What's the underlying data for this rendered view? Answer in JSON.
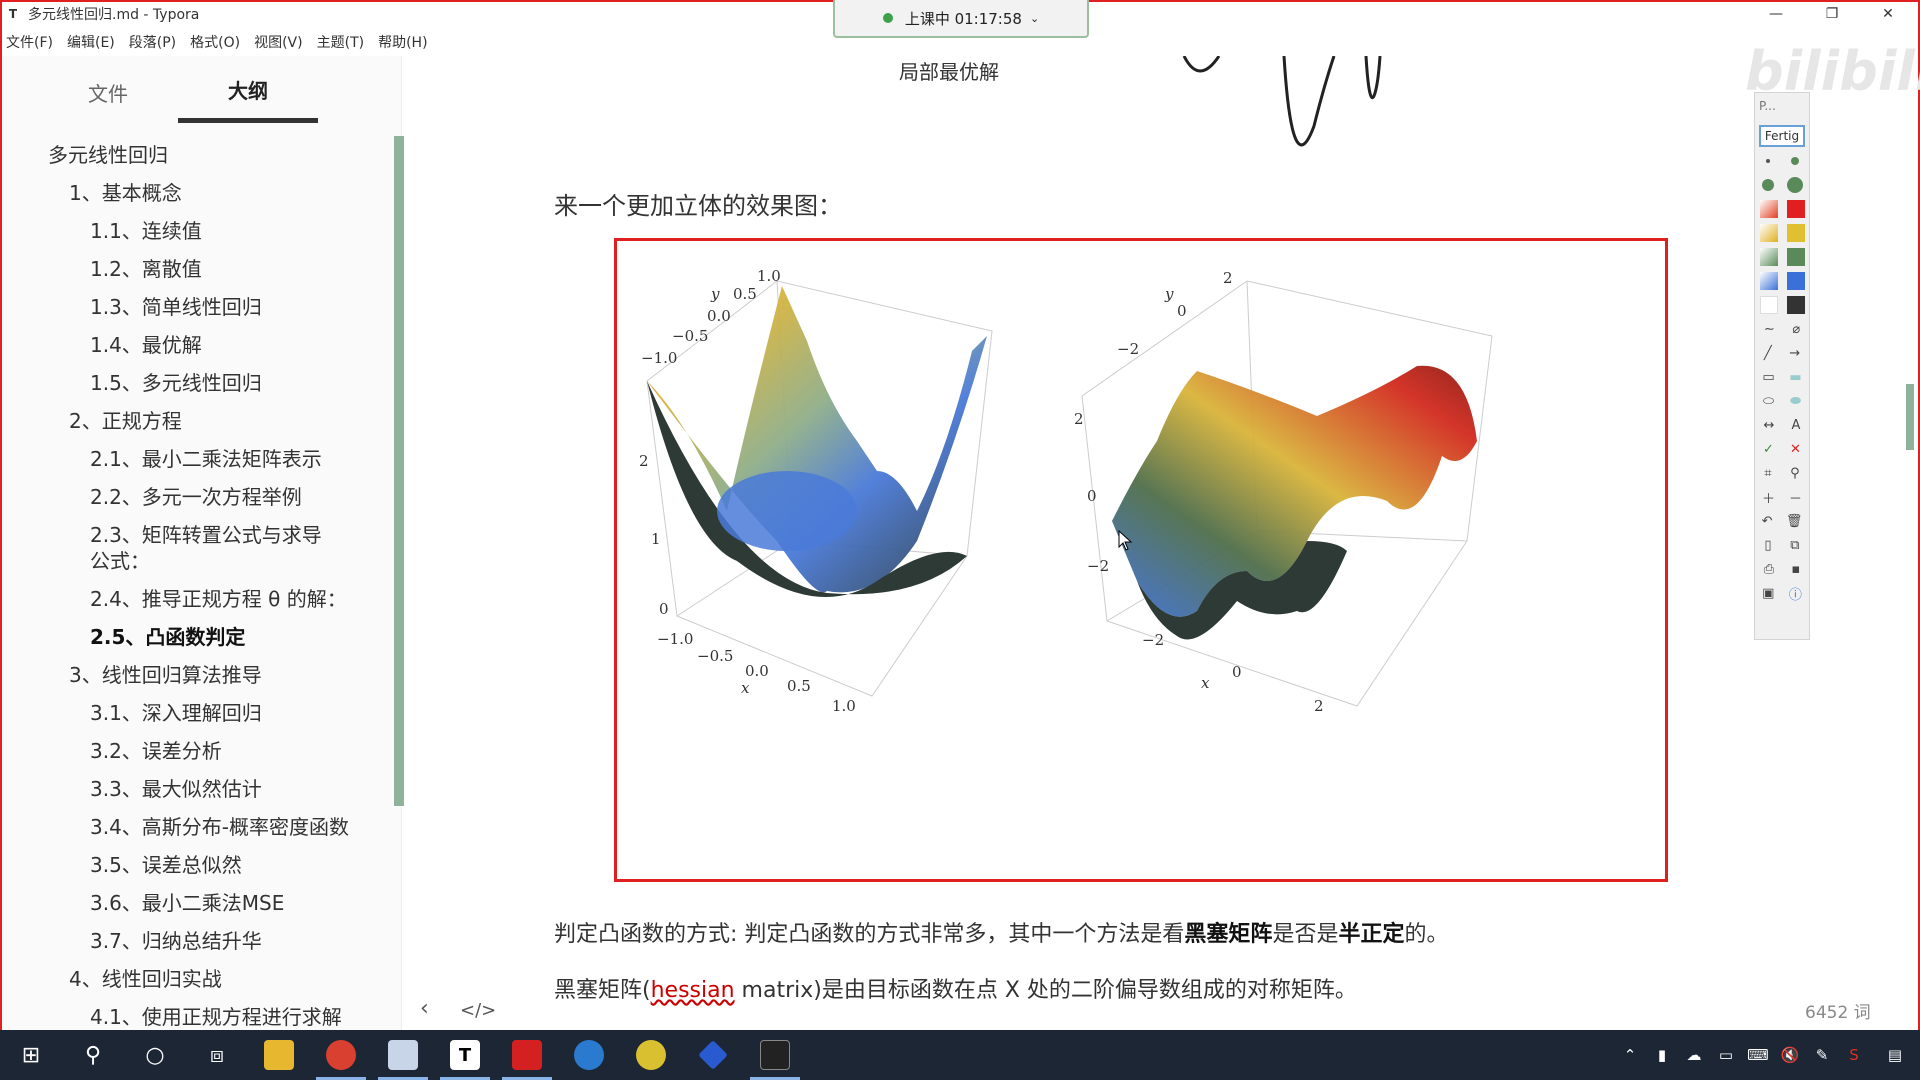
{
  "window": {
    "title": "多元线性回归.md - Typora",
    "app_icon": "T",
    "controls": {
      "minimize": "—",
      "maximize": "❐",
      "close": "✕"
    }
  },
  "menu": [
    "文件(F)",
    "编辑(E)",
    "段落(P)",
    "格式(O)",
    "视图(V)",
    "主题(T)",
    "帮助(H)"
  ],
  "recording": {
    "label": "上课中 01:17:58",
    "caret": "⌄"
  },
  "sidebar": {
    "tabs": [
      {
        "label": "文件"
      },
      {
        "label": "大纲"
      }
    ],
    "outline": [
      {
        "level": 1,
        "label": "多元线性回归"
      },
      {
        "level": 2,
        "label": "1、基本概念"
      },
      {
        "level": 3,
        "label": "1.1、连续值"
      },
      {
        "level": 3,
        "label": "1.2、离散值"
      },
      {
        "level": 3,
        "label": "1.3、简单线性回归"
      },
      {
        "level": 3,
        "label": "1.4、最优解"
      },
      {
        "level": 3,
        "label": "1.5、多元线性回归"
      },
      {
        "level": 2,
        "label": "2、正规方程"
      },
      {
        "level": 3,
        "label": "2.1、最小二乘法矩阵表示"
      },
      {
        "level": 3,
        "label": "2.2、多元一次方程举例"
      },
      {
        "level": 3,
        "label": "2.3、矩阵转置公式与求导公式："
      },
      {
        "level": 3,
        "label": "2.4、推导正规方程 θ 的解："
      },
      {
        "level": 3,
        "label": "2.5、凸函数判定"
      },
      {
        "level": 2,
        "label": "3、线性回归算法推导"
      },
      {
        "level": 3,
        "label": "3.1、深入理解回归"
      },
      {
        "level": 3,
        "label": "3.2、误差分析"
      },
      {
        "level": 3,
        "label": "3.3、最大似然估计"
      },
      {
        "level": 3,
        "label": "3.4、高斯分布-概率密度函数"
      },
      {
        "level": 3,
        "label": "3.5、误差总似然"
      },
      {
        "level": 3,
        "label": "3.6、最小二乘法MSE"
      },
      {
        "level": 3,
        "label": "3.7、归纳总结升华"
      },
      {
        "level": 2,
        "label": "4、线性回归实战"
      },
      {
        "level": 3,
        "label": "4.1、使用正规方程进行求解"
      }
    ]
  },
  "editor": {
    "fragment_label": "局部最优解",
    "intro": "来一个更加立体的效果图：",
    "plot_left": {
      "y_label": "y",
      "x_label": "x",
      "y_ticks": [
        "1.0",
        "0.5",
        "0.0",
        "−0.5",
        "−1.0"
      ],
      "z_ticks": [
        "2",
        "1",
        "0"
      ],
      "x_ticks": [
        "−1.0",
        "−0.5",
        "0.0",
        "0.5",
        "1.0"
      ]
    },
    "plot_right": {
      "y_label": "y",
      "x_label": "x",
      "y_ticks": [
        "2",
        "0",
        "−2"
      ],
      "z_ticks": [
        "2",
        "0",
        "−2"
      ],
      "x_ticks": [
        "−2",
        "0",
        "2"
      ]
    },
    "para1": {
      "p1": "判定凸函数的方式: 判定凸函数的方式非常多，其中一个方法是看",
      "b1": "黑塞矩阵",
      "p2": "是否是",
      "b2": "半正定",
      "p3": "的。"
    },
    "para2": {
      "p1": "黑塞矩阵(",
      "hl": "hessian",
      "p2": " matrix)是由目标函数在点 X 处的二阶偏导数组成的对称矩阵。"
    },
    "nav_left": "‹",
    "nav_code": "</>",
    "word_count": "6452 词"
  },
  "palette": {
    "top_label": "P...",
    "done_label": "Fertig",
    "text_tool": "A"
  },
  "watermark": "bilibili",
  "taskbar": {
    "apps": [
      "windows-start",
      "search",
      "cortana",
      "task-view",
      "file-explorer",
      "chrome",
      "paint",
      "typora",
      "pdf-reader",
      "edge",
      "python",
      "video-player",
      "terminal"
    ],
    "typora_letter": "T"
  },
  "colors": {
    "accent_red": "#e02020",
    "scroll_green": "#8fb29b",
    "taskbar": "#1c2634"
  }
}
